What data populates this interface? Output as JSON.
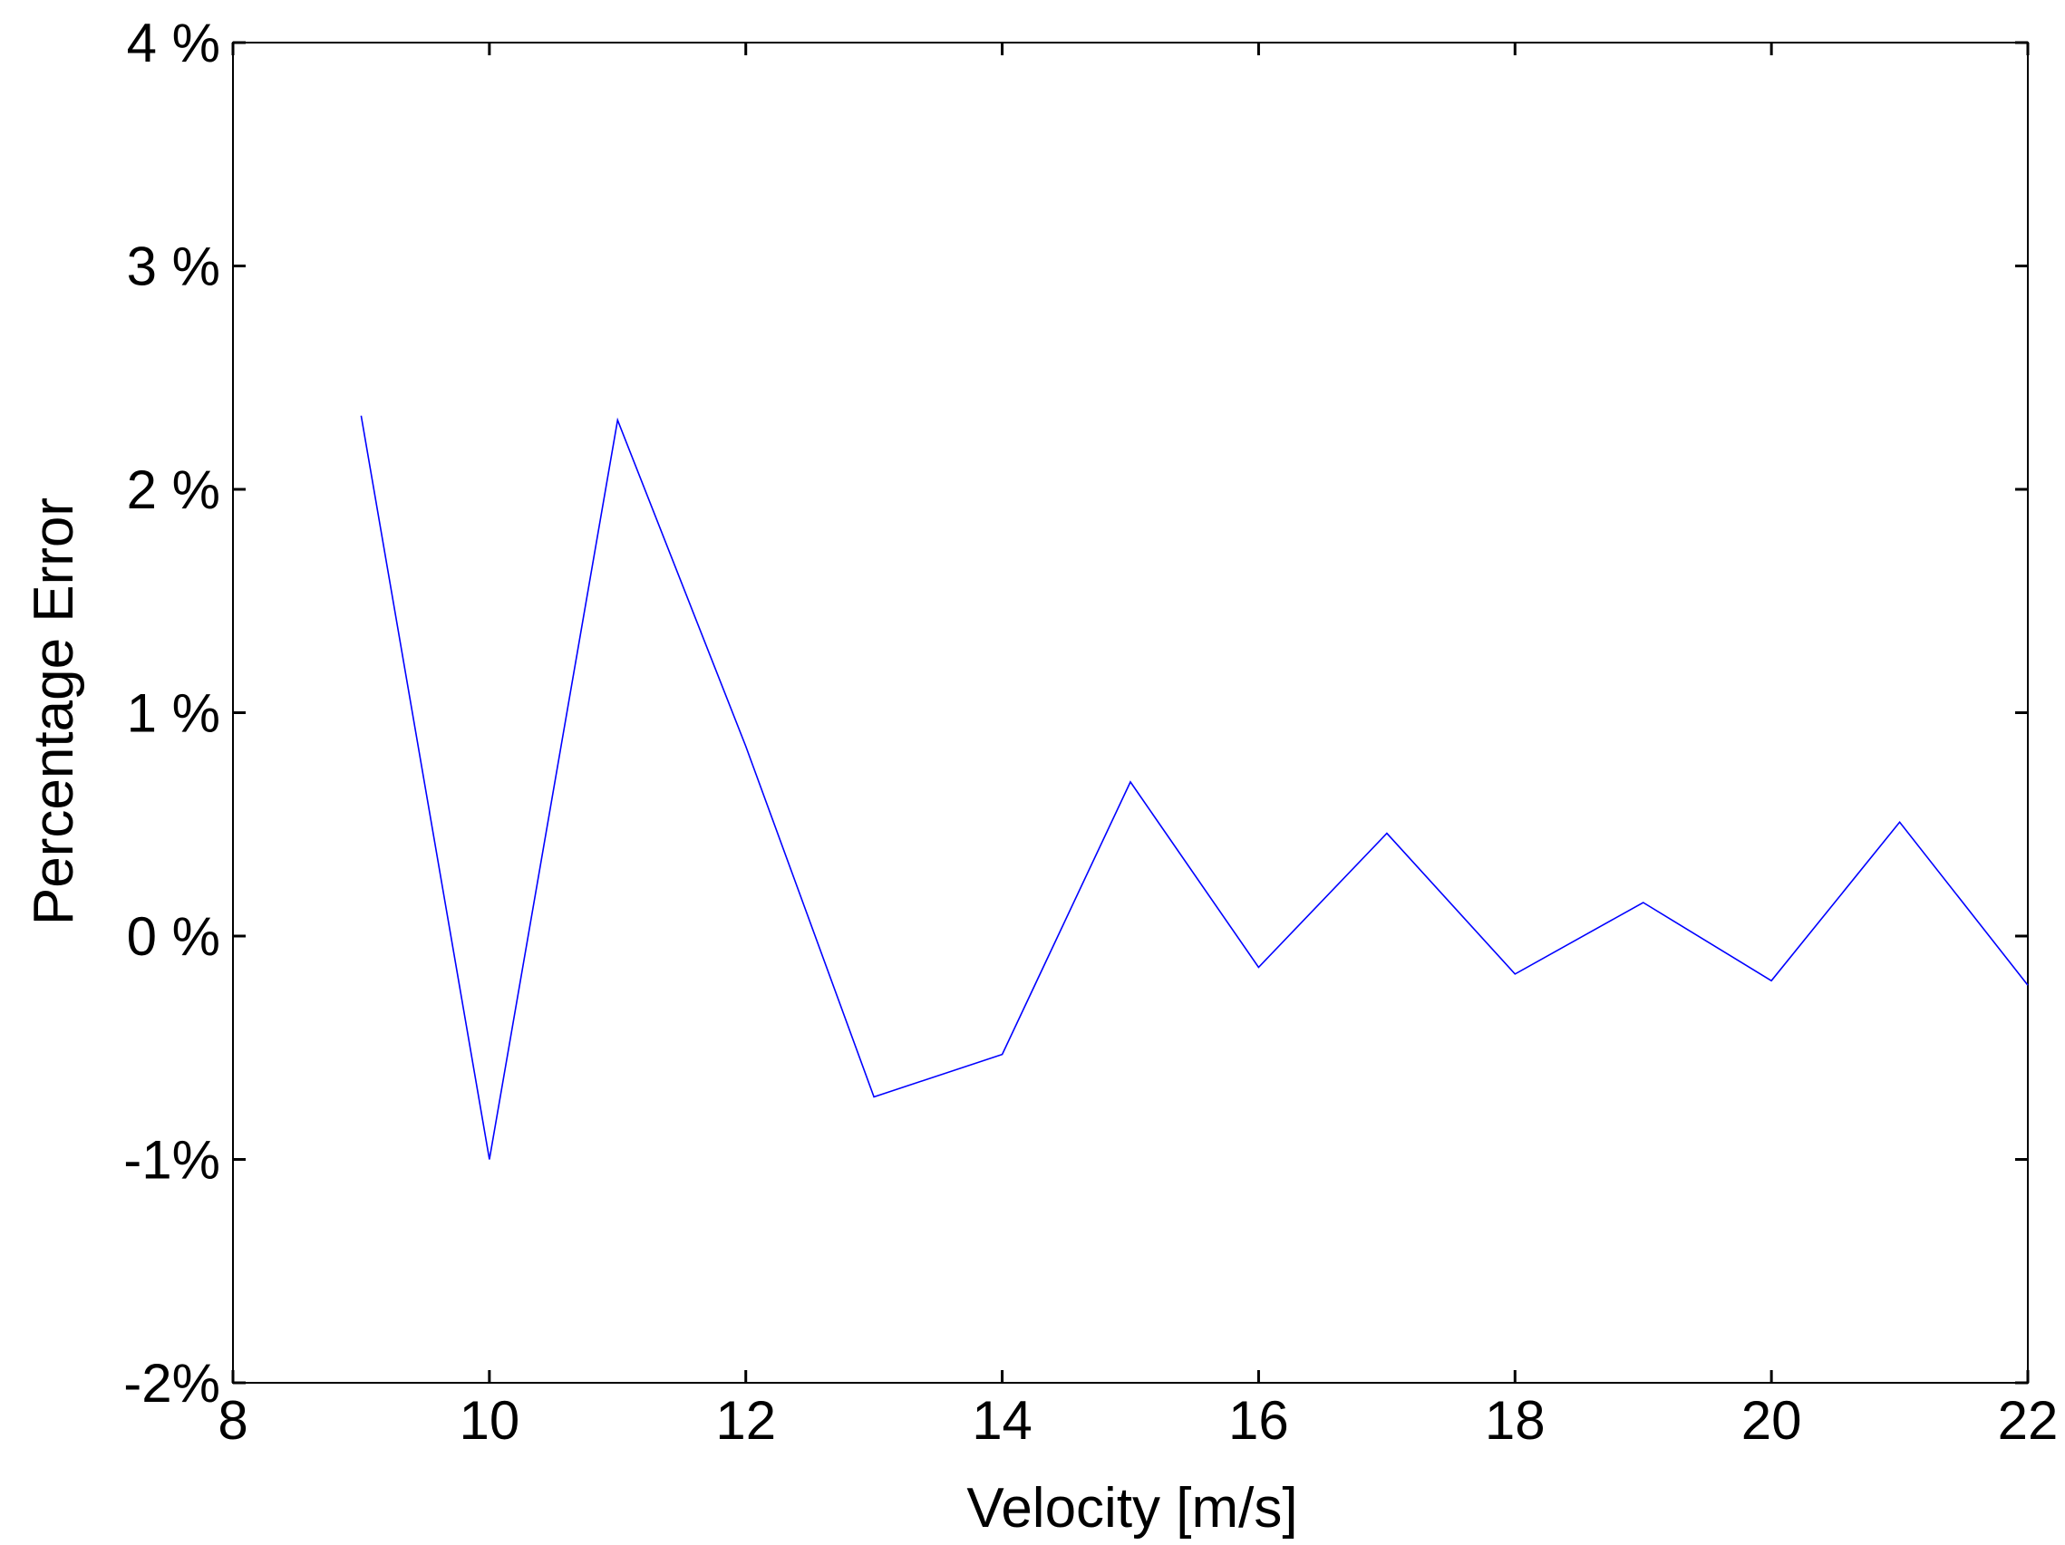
{
  "chart_data": {
    "type": "line",
    "title": "",
    "xlabel": "Velocity [m/s]",
    "ylabel": "Percentage Error",
    "xlim": [
      8,
      22
    ],
    "ylim": [
      -2,
      4
    ],
    "x_ticks": [
      8,
      10,
      12,
      14,
      16,
      18,
      20,
      22
    ],
    "x_tick_labels": [
      "8",
      "10",
      "12",
      "14",
      "16",
      "18",
      "20",
      "22"
    ],
    "y_ticks": [
      -2,
      -1,
      0,
      1,
      2,
      3,
      4
    ],
    "y_tick_labels": [
      "-2%",
      "-1%",
      "0 %",
      "1 %",
      "2 %",
      "3 %",
      "4 %"
    ],
    "grid": false,
    "box": true,
    "series": [
      {
        "color": "#0000ff",
        "x": [
          9,
          10,
          11,
          12,
          13,
          14,
          15,
          16,
          17,
          18,
          19,
          20,
          21,
          22
        ],
        "y": [
          2.33,
          -1.0,
          2.31,
          0.85,
          -0.72,
          -0.53,
          0.69,
          -0.14,
          0.46,
          -0.17,
          0.15,
          -0.2,
          0.51,
          -0.22
        ]
      }
    ]
  }
}
